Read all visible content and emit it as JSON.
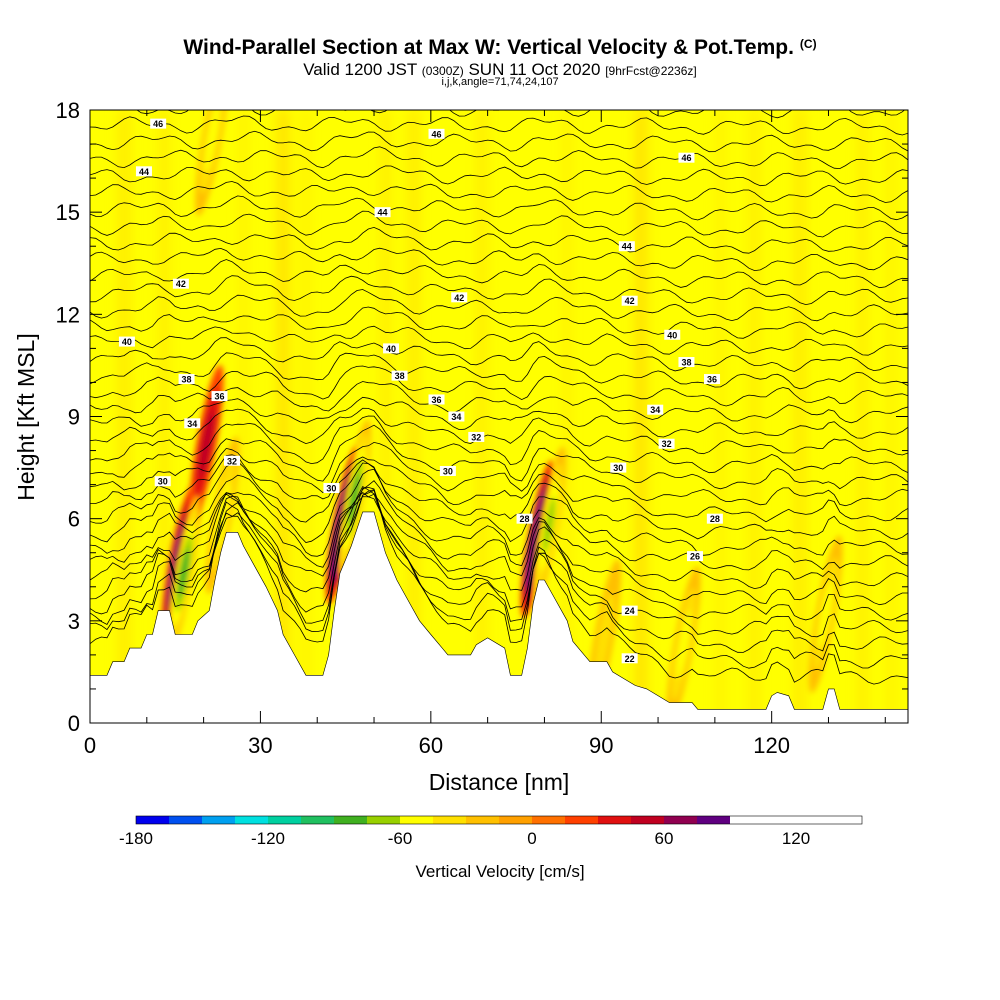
{
  "title": {
    "main": "Wind-Parallel Section at Max W: Vertical Velocity & Pot.Temp.",
    "mark": "(C)",
    "valid_prefix": "Valid 1200 JST",
    "valid_utc": "(0300Z)",
    "valid_date": "SUN 11 Oct 2020",
    "forecast": "[9hrFcst@2236z]",
    "indices": "i,j,k,angle=71,74,24,107"
  },
  "chart_data": {
    "type": "heatmap",
    "xlabel": "Distance [nm]",
    "ylabel": "Height [Kft MSL]",
    "xlim": [
      0,
      144
    ],
    "ylim": [
      0,
      18
    ],
    "xticks": [
      0,
      30,
      60,
      90,
      120
    ],
    "yticks": [
      0,
      3,
      6,
      9,
      12,
      15,
      18
    ],
    "colorbar": {
      "label": "Vertical Velocity [cm/s]",
      "min": -180,
      "max": 150,
      "step": 15,
      "tick_labels": [
        -180,
        -120,
        -60,
        0,
        60,
        120
      ],
      "colors": [
        "#0000ee",
        "#0050f0",
        "#00a0f0",
        "#00e0e0",
        "#00d0a0",
        "#20c060",
        "#40b020",
        "#98d000",
        "#ffff00",
        "#ffe000",
        "#ffc000",
        "#ffa000",
        "#ff7000",
        "#ff4000",
        "#e01010",
        "#c00020",
        "#900050",
        "#600080"
      ]
    },
    "terrain": [
      [
        0,
        1.4
      ],
      [
        3,
        1.4
      ],
      [
        4,
        1.8
      ],
      [
        6,
        1.8
      ],
      [
        7,
        2.2
      ],
      [
        9,
        2.2
      ],
      [
        10,
        2.6
      ],
      [
        11,
        2.6
      ],
      [
        12,
        3.3
      ],
      [
        14,
        3.3
      ],
      [
        15,
        2.6
      ],
      [
        18,
        2.6
      ],
      [
        19,
        3.0
      ],
      [
        21,
        3.3
      ],
      [
        22,
        4.2
      ],
      [
        23,
        5.0
      ],
      [
        24,
        5.6
      ],
      [
        26,
        5.6
      ],
      [
        27,
        5.2
      ],
      [
        29,
        4.6
      ],
      [
        31,
        4.0
      ],
      [
        33,
        3.3
      ],
      [
        34,
        2.6
      ],
      [
        36,
        2.0
      ],
      [
        38,
        1.4
      ],
      [
        41,
        1.4
      ],
      [
        42,
        2.0
      ],
      [
        43,
        3.3
      ],
      [
        44,
        4.4
      ],
      [
        46,
        5.2
      ],
      [
        48,
        6.2
      ],
      [
        50,
        6.2
      ],
      [
        51,
        5.6
      ],
      [
        52,
        5.0
      ],
      [
        54,
        4.2
      ],
      [
        56,
        3.6
      ],
      [
        58,
        3.0
      ],
      [
        60,
        2.6
      ],
      [
        62,
        2.2
      ],
      [
        63,
        2.0
      ],
      [
        67,
        2.0
      ],
      [
        68,
        2.3
      ],
      [
        70,
        2.5
      ],
      [
        73,
        2.2
      ],
      [
        74,
        1.4
      ],
      [
        76,
        1.4
      ],
      [
        77,
        2.2
      ],
      [
        78,
        3.5
      ],
      [
        79,
        4.2
      ],
      [
        80,
        4.2
      ],
      [
        82,
        3.6
      ],
      [
        84,
        3.0
      ],
      [
        85,
        2.4
      ],
      [
        87,
        2.0
      ],
      [
        88,
        1.8
      ],
      [
        91,
        1.8
      ],
      [
        92,
        1.5
      ],
      [
        94,
        1.3
      ],
      [
        96,
        1.1
      ],
      [
        98,
        1.0
      ],
      [
        100,
        0.8
      ],
      [
        102,
        0.6
      ],
      [
        106,
        0.6
      ],
      [
        107,
        0.4
      ],
      [
        112,
        0.4
      ],
      [
        119,
        0.4
      ],
      [
        120,
        0.8
      ],
      [
        121,
        0.9
      ],
      [
        123,
        0.8
      ],
      [
        124,
        0.4
      ],
      [
        129,
        0.4
      ],
      [
        130,
        1.0
      ],
      [
        131,
        1.0
      ],
      [
        132,
        0.4
      ],
      [
        144,
        0.4
      ]
    ],
    "updraft_max": [
      {
        "x": 15.5,
        "z": 4.6,
        "w": 100
      },
      {
        "x": 44.5,
        "z": 5.8,
        "w": 150
      },
      {
        "x": 78.8,
        "z": 5.4,
        "w": 140
      },
      {
        "x": 20.5,
        "z": 8.2,
        "w": 45
      }
    ],
    "downdraft_max": [
      {
        "x": 16.5,
        "z": 4.4,
        "w": -75
      },
      {
        "x": 23.3,
        "z": 6.1,
        "w": -40
      },
      {
        "x": 46.5,
        "z": 6.6,
        "w": -75
      },
      {
        "x": 80.8,
        "z": 5.8,
        "w": -60
      },
      {
        "x": 21.5,
        "z": 17.2,
        "w": -45
      },
      {
        "x": 129.5,
        "z": 3.2,
        "w": -45
      },
      {
        "x": 104.5,
        "z": 2.3,
        "w": -40
      },
      {
        "x": 90.5,
        "z": 2.5,
        "w": -35
      }
    ],
    "theta_labels": [
      {
        "x": 12,
        "z": 17.6,
        "text": "46"
      },
      {
        "x": 61,
        "z": 17.3,
        "text": "46"
      },
      {
        "x": 105,
        "z": 16.6,
        "text": "46"
      },
      {
        "x": 9.5,
        "z": 16.2,
        "text": "44"
      },
      {
        "x": 51.5,
        "z": 15.0,
        "text": "44"
      },
      {
        "x": 94.5,
        "z": 14.0,
        "text": "44"
      },
      {
        "x": 16,
        "z": 12.9,
        "text": "42"
      },
      {
        "x": 65,
        "z": 12.5,
        "text": "42"
      },
      {
        "x": 95,
        "z": 12.4,
        "text": "42"
      },
      {
        "x": 6.5,
        "z": 11.2,
        "text": "40"
      },
      {
        "x": 53,
        "z": 11.0,
        "text": "40"
      },
      {
        "x": 102.5,
        "z": 11.4,
        "text": "40"
      },
      {
        "x": 17,
        "z": 10.1,
        "text": "38"
      },
      {
        "x": 54.5,
        "z": 10.2,
        "text": "38"
      },
      {
        "x": 105,
        "z": 10.6,
        "text": "38"
      },
      {
        "x": 22.8,
        "z": 9.6,
        "text": "36"
      },
      {
        "x": 61,
        "z": 9.5,
        "text": "36"
      },
      {
        "x": 109.5,
        "z": 10.1,
        "text": "36"
      },
      {
        "x": 18,
        "z": 8.8,
        "text": "34"
      },
      {
        "x": 64.5,
        "z": 9.0,
        "text": "34"
      },
      {
        "x": 99.5,
        "z": 9.2,
        "text": "34"
      },
      {
        "x": 25,
        "z": 7.7,
        "text": "32"
      },
      {
        "x": 68,
        "z": 8.4,
        "text": "32"
      },
      {
        "x": 101.5,
        "z": 8.2,
        "text": "32"
      },
      {
        "x": 12.8,
        "z": 7.1,
        "text": "30"
      },
      {
        "x": 42.5,
        "z": 6.9,
        "text": "30"
      },
      {
        "x": 63,
        "z": 7.4,
        "text": "30"
      },
      {
        "x": 93,
        "z": 7.5,
        "text": "30"
      },
      {
        "x": 76.5,
        "z": 6.0,
        "text": "28"
      },
      {
        "x": 110,
        "z": 6.0,
        "text": "28"
      },
      {
        "x": 106.5,
        "z": 4.9,
        "text": "26"
      },
      {
        "x": 95,
        "z": 3.3,
        "text": "24"
      },
      {
        "x": 95,
        "z": 1.9,
        "text": "22"
      }
    ]
  }
}
